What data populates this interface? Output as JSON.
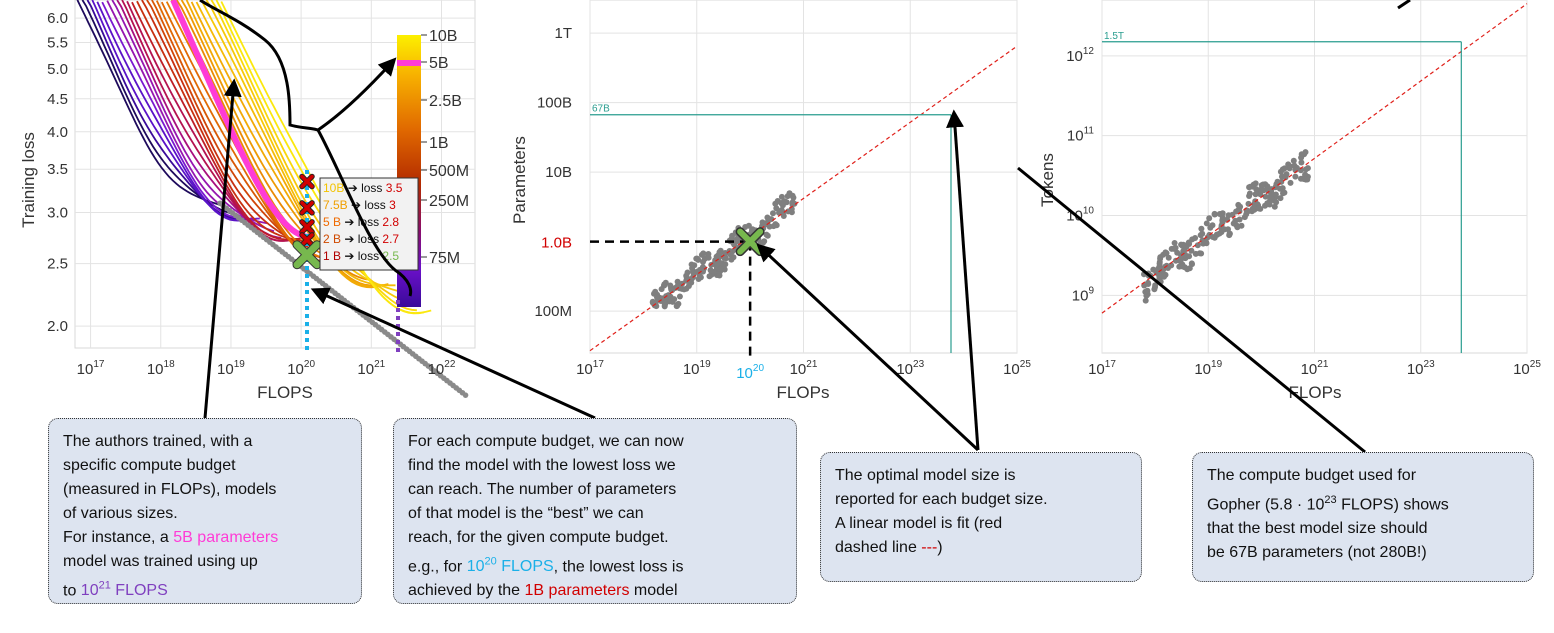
{
  "colors": {
    "pink": "#ff3bd6",
    "purple": "#7f3fbf",
    "blue": "#1ab0e8",
    "red": "#d10000",
    "green": "#77b84e",
    "teal": "#2a9d8f",
    "gray_points": "#7f7f7f",
    "callout_bg": "#dde4f0"
  },
  "chart_data": [
    {
      "type": "line",
      "xlabel": "FLOPS",
      "ylabel": "Training loss",
      "x_scale": "log",
      "y_scale": "log",
      "xlim": [
        6e+16,
        3e+22
      ],
      "ylim": [
        1.85,
        6.4
      ],
      "x_ticks": [
        {
          "value": 1e+17,
          "base": "10",
          "exp": "17"
        },
        {
          "value": 1e+18,
          "base": "10",
          "exp": "18"
        },
        {
          "value": 1e+19,
          "base": "10",
          "exp": "19"
        },
        {
          "value": 1e+20,
          "base": "10",
          "exp": "20"
        },
        {
          "value": 1e+21,
          "base": "10",
          "exp": "21"
        },
        {
          "value": 1e+22,
          "base": "10",
          "exp": "22"
        }
      ],
      "y_ticks": [
        {
          "value": 2.0,
          "label": "2.0"
        },
        {
          "value": 2.5,
          "label": "2.5"
        },
        {
          "value": 3.0,
          "label": "3.0"
        },
        {
          "value": 3.5,
          "label": "3.5"
        },
        {
          "value": 4.0,
          "label": "4.0"
        },
        {
          "value": 4.5,
          "label": "4.5"
        },
        {
          "value": 5.0,
          "label": "5.0"
        },
        {
          "value": 5.5,
          "label": "5.5"
        },
        {
          "value": 6.0,
          "label": "6.0"
        }
      ],
      "colorbar": {
        "labels": [
          "10B",
          "5B",
          "2.5B",
          "1B",
          "500M",
          "250M",
          "75M"
        ],
        "highlight": "5B"
      },
      "highlight_series": {
        "name": "5B",
        "color": "#ff3bd6"
      },
      "budget_line_x": 1e+20,
      "budget_line_x2": 1.5e+21,
      "inset": [
        {
          "size": "10B",
          "loss": "3.5",
          "size_color": "#f3c300",
          "loss_color": "#d10000"
        },
        {
          "size": "7.5B",
          "loss": "3",
          "size_color": "#f0a000",
          "loss_color": "#d10000"
        },
        {
          "size": "5 B",
          "loss": "2.8",
          "size_color": "#ef6a00",
          "loss_color": "#d10000"
        },
        {
          "size": "2 B",
          "loss": "2.7",
          "size_color": "#cf4a00",
          "loss_color": "#d10000"
        },
        {
          "size": "1 B",
          "loss": "2.5",
          "size_color": "#b00000",
          "loss_color": "#77b84e"
        }
      ],
      "inset_word": "loss",
      "marker_points": [
        {
          "loss": 3.35,
          "color": "#d10000"
        },
        {
          "loss": 3.05,
          "color": "#d10000"
        },
        {
          "loss": 2.85,
          "color": "#d10000"
        },
        {
          "loss": 2.72,
          "color": "#d10000"
        },
        {
          "loss": 2.58,
          "color": "#77b84e"
        }
      ]
    },
    {
      "type": "scatter",
      "xlabel": "FLOPs",
      "ylabel": "Parameters",
      "x_scale": "log",
      "y_scale": "log",
      "xlim": [
        1e+17,
        1e+25
      ],
      "ylim": [
        25000000.0,
        3000000000000.0
      ],
      "x_ticks": [
        {
          "value": 1e+17,
          "base": "10",
          "exp": "17"
        },
        {
          "value": 1e+19,
          "base": "10",
          "exp": "19"
        },
        {
          "value": 1e+21,
          "base": "10",
          "exp": "21"
        },
        {
          "value": 1e+23,
          "base": "10",
          "exp": "23"
        },
        {
          "value": 1e+25,
          "base": "10",
          "exp": "25"
        }
      ],
      "y_ticks": [
        {
          "value": 100000000.0,
          "label": "100M"
        },
        {
          "value": 10000000000.0,
          "label": "10B"
        },
        {
          "value": 100000000000.0,
          "label": "100B"
        },
        {
          "value": 1000000000000.0,
          "label": "1T"
        }
      ],
      "highlight_y": {
        "value": 1000000000.0,
        "label": "1.0B",
        "color": "#d10000"
      },
      "highlight_x": {
        "value": 1e+20,
        "base": "10",
        "exp": "20",
        "color": "#1ab0e8"
      },
      "optimal_marker": {
        "x": 1e+20,
        "y": 1000000000.0
      },
      "gopher": {
        "x": 5.8e+23,
        "y": 67000000000.0,
        "label": "67B"
      },
      "fit_line": {
        "x0": 1e+17,
        "y0": 27000000.0,
        "x1": 1e+25,
        "y1": 650000000000.0
      },
      "point_band": {
        "x_from": 1.5e+18,
        "x_to": 8e+20,
        "fit_x0": 1e+17,
        "fit_y0": 27000000.0,
        "slope": 0.55
      }
    },
    {
      "type": "scatter",
      "xlabel": "FLOPs",
      "ylabel": "Tokens",
      "x_scale": "log",
      "y_scale": "log",
      "xlim": [
        1e+17,
        1e+25
      ],
      "ylim": [
        190000000.0,
        5000000000000.0
      ],
      "x_ticks": [
        {
          "value": 1e+17,
          "base": "10",
          "exp": "17"
        },
        {
          "value": 1e+19,
          "base": "10",
          "exp": "19"
        },
        {
          "value": 1e+21,
          "base": "10",
          "exp": "21"
        },
        {
          "value": 1e+23,
          "base": "10",
          "exp": "23"
        },
        {
          "value": 1e+25,
          "base": "10",
          "exp": "25"
        }
      ],
      "y_ticks": [
        {
          "value": 1000000000.0,
          "base": "10",
          "exp": "9"
        },
        {
          "value": 10000000000.0,
          "base": "10",
          "exp": "10"
        },
        {
          "value": 100000000000.0,
          "base": "10",
          "exp": "11"
        },
        {
          "value": 1000000000000.0,
          "base": "10",
          "exp": "12"
        }
      ],
      "gopher": {
        "x": 5.8e+23,
        "y": 1500000000000.0,
        "label": "1.5T"
      },
      "fit_line": {
        "x0": 1e+17,
        "y0": 600000000.0,
        "x1": 1e+25,
        "y1": 4500000000000.0
      },
      "point_band": {
        "x_from": 6e+17,
        "x_to": 8e+20,
        "fit_x0": 1e+17,
        "fit_y0": 600000000.0,
        "slope": 0.485
      }
    }
  ],
  "callouts": {
    "c1": {
      "l1": "The authors trained, with  a",
      "l2": "specific compute budget",
      "l3": "(measured in FLOPs), models",
      "l4": "of various sizes.",
      "l5a": "For instance, a ",
      "l5b": "5B parameters",
      "l6": "model was trained using up",
      "l7a": "to ",
      "l7b": "10",
      "l7sup": "21",
      "l7c": " FLOPS"
    },
    "c2": {
      "l1": "For each compute budget, we can now",
      "l2": "find the model with the lowest loss we",
      "l3": "can reach. The number of parameters",
      "l4": "of that model is the “best” we can",
      "l5": "reach, for the given compute budget.",
      "l6a": "e.g., for ",
      "l6b": "10",
      "l6sup": "20",
      "l6c": " FLOPS",
      "l6d": ", the lowest loss is",
      "l7a": "achieved by the ",
      "l7b": "1B parameters",
      "l7c": " model"
    },
    "c3": {
      "l1": "The optimal model size is",
      "l2": "reported for each budget size.",
      "l3": "A linear model is fit (red",
      "l4a": "dashed line ",
      "l4b": "---",
      "l4c": ")"
    },
    "c4": {
      "l1": "The compute budget used for",
      "l2a": "Gopher (5.8 · 10",
      "l2sup": "23",
      "l2b": " FLOPS) shows",
      "l3": "that the best model size should",
      "l4": "be 67B parameters (not 280B!)"
    }
  }
}
